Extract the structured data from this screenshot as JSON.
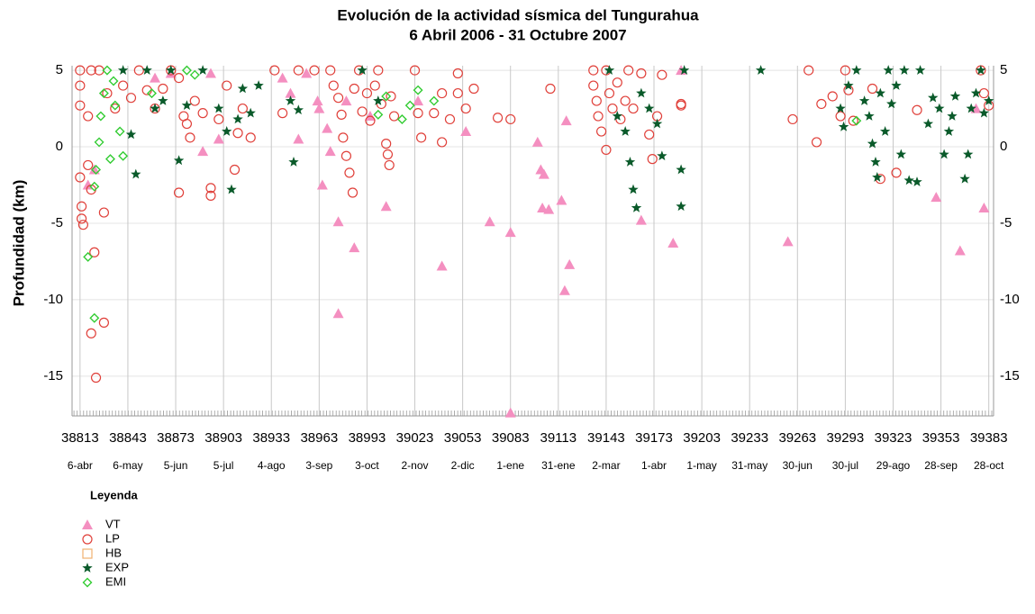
{
  "chart_data": {
    "type": "scatter",
    "title": "Evolución de la actividad sísmica del Tungurahua",
    "subtitle": "6 Abril 2006 - 31 Octubre 2007",
    "y_label": "Profundidad (km)",
    "legend_title": "Leyenda",
    "legend": "bottom-left",
    "grid": true,
    "xlim": [
      38808,
      39386
    ],
    "ylim": [
      -17.6,
      5.3
    ],
    "xticks": [
      38813,
      38843,
      38873,
      38903,
      38933,
      38963,
      38993,
      39023,
      39053,
      39083,
      39113,
      39143,
      39173,
      39203,
      39233,
      39263,
      39293,
      39323,
      39353,
      39383
    ],
    "xtick_dates": [
      "6-abr",
      "6-may",
      "5-jun",
      "5-jul",
      "4-ago",
      "3-sep",
      "3-oct",
      "2-nov",
      "2-dic",
      "1-ene",
      "31-ene",
      "2-mar",
      "1-abr",
      "1-may",
      "31-may",
      "30-jun",
      "30-jul",
      "29-ago",
      "28-sep",
      "28-oct"
    ],
    "yticks": [
      5,
      0,
      -5,
      -10,
      -15
    ],
    "series": [
      {
        "name": "VT",
        "marker": "triangle",
        "color": "#f48fc0",
        "x": [
          38818,
          38822,
          38860,
          38870,
          38890,
          38895,
          38900,
          38940,
          38945,
          38950,
          38955,
          38962,
          38963,
          38965,
          38968,
          38970,
          38975,
          38975,
          38980,
          38985,
          38995,
          39005,
          39025,
          39040,
          39055,
          39070,
          39083,
          39083,
          39100,
          39102,
          39104,
          39103,
          39107,
          39115,
          39117,
          39120,
          39118,
          39165,
          39185,
          39190,
          39257,
          39350,
          39365,
          39380,
          39375
        ],
        "values": [
          -2.5,
          -1.5,
          4.5,
          4.8,
          -0.3,
          4.8,
          0.5,
          4.5,
          3.5,
          0.5,
          4.8,
          3.0,
          2.5,
          -2.5,
          1.2,
          -0.3,
          -4.9,
          -10.9,
          3.0,
          -6.6,
          2.0,
          -3.9,
          3.0,
          -7.8,
          1.0,
          -4.9,
          -5.6,
          -17.4,
          0.3,
          -1.5,
          -1.8,
          -4.0,
          -4.1,
          -3.5,
          -9.4,
          -7.7,
          1.7,
          -4.8,
          -6.3,
          5.0,
          -6.2,
          -3.3,
          -6.8,
          -4.0,
          2.5
        ]
      },
      {
        "name": "LP",
        "marker": "circle",
        "color": "#e0403a",
        "x": [
          38813,
          38813,
          38813,
          38813,
          38814,
          38814,
          38815,
          38818,
          38820,
          38822,
          38820,
          38823,
          38828,
          38828,
          38818,
          38820,
          38825,
          38830,
          38835,
          38840,
          38845,
          38850,
          38855,
          38860,
          38865,
          38870,
          38875,
          38878,
          38880,
          38875,
          38882,
          38885,
          38890,
          38895,
          38895,
          38900,
          38905,
          38910,
          38912,
          38915,
          38920,
          38935,
          38940,
          38950,
          38960,
          38970,
          38972,
          38975,
          38977,
          38978,
          38980,
          38982,
          38984,
          38985,
          38988,
          38990,
          38993,
          38995,
          38998,
          39000,
          39002,
          39005,
          39006,
          39007,
          39008,
          39010,
          39023,
          39025,
          39027,
          39035,
          39040,
          39040,
          39045,
          39050,
          39050,
          39055,
          39060,
          39075,
          39083,
          39108,
          39135,
          39135,
          39137,
          39138,
          39140,
          39143,
          39145,
          39147,
          39150,
          39152,
          39155,
          39157,
          39160,
          39143,
          39165,
          39170,
          39172,
          39175,
          39178,
          39190,
          39190,
          39260,
          39270,
          39275,
          39278,
          39285,
          39290,
          39293,
          39295,
          39298,
          39310,
          39315,
          39325,
          39338,
          39378,
          39380,
          39383
        ],
        "values": [
          5,
          4,
          2.7,
          -2,
          -3.9,
          -4.7,
          -5.1,
          -1.2,
          -2.8,
          -6.9,
          -12.2,
          -15.1,
          -11.5,
          -4.3,
          2.0,
          5,
          5,
          3.5,
          2.5,
          4,
          3.2,
          5,
          3.7,
          2.5,
          3.8,
          5,
          4.5,
          2.0,
          1.5,
          -3.0,
          0.6,
          3.0,
          2.2,
          -2.7,
          -3.2,
          1.8,
          4.0,
          -1.5,
          0.9,
          2.5,
          0.6,
          5,
          2.2,
          5,
          5,
          5,
          4.0,
          3.2,
          2.1,
          0.6,
          -0.6,
          -1.7,
          -3.0,
          3.8,
          5,
          2.3,
          3.5,
          1.7,
          4.0,
          5,
          2.8,
          0.2,
          -0.5,
          -1.2,
          3.3,
          2.0,
          5,
          2.2,
          0.6,
          2.2,
          3.5,
          0.3,
          1.8,
          4.8,
          3.5,
          2.5,
          3.8,
          1.9,
          1.8,
          3.8,
          5,
          4.0,
          3.0,
          2.0,
          1.0,
          5,
          3.5,
          2.5,
          4.2,
          1.8,
          3.0,
          5,
          2.5,
          -0.2,
          4.8,
          0.8,
          -0.8,
          2.0,
          4.7,
          2.8,
          2.7,
          1.8,
          5,
          0.3,
          2.8,
          3.3,
          2.0,
          5,
          3.7,
          1.7,
          3.8,
          -2.1,
          -1.7,
          2.4,
          5,
          3.5,
          2.7
        ]
      },
      {
        "name": "HB",
        "marker": "square",
        "color": "#f0b070",
        "x": [],
        "values": []
      },
      {
        "name": "EXP",
        "marker": "star",
        "color": "#0a5a2a",
        "x": [
          38840,
          38845,
          38848,
          38855,
          38860,
          38865,
          38870,
          38875,
          38880,
          38890,
          38900,
          38905,
          38908,
          38912,
          38915,
          38920,
          38925,
          38945,
          38947,
          38950,
          38990,
          39000,
          39145,
          39150,
          39155,
          39158,
          39160,
          39162,
          39165,
          39170,
          39175,
          39178,
          39190,
          39190,
          39192,
          39240,
          39290,
          39292,
          39295,
          39300,
          39305,
          39308,
          39310,
          39312,
          39313,
          39315,
          39318,
          39320,
          39322,
          39325,
          39328,
          39330,
          39333,
          39338,
          39340,
          39345,
          39348,
          39352,
          39355,
          39358,
          39360,
          39362,
          39368,
          39370,
          39372,
          39375,
          39378,
          39380,
          39383
        ],
        "values": [
          5,
          0.8,
          -1.8,
          5,
          2.5,
          3.0,
          5,
          -0.9,
          2.7,
          5,
          2.5,
          1.0,
          -2.8,
          1.8,
          3.8,
          2.2,
          4.0,
          3.0,
          -1.0,
          2.4,
          5,
          3.0,
          5,
          2.0,
          1.0,
          -1.0,
          -2.8,
          -4.0,
          3.5,
          2.5,
          1.5,
          -0.6,
          -1.5,
          -3.9,
          5,
          5,
          2.5,
          1.3,
          4.0,
          5,
          3.0,
          2.0,
          0.2,
          -1.0,
          -2.0,
          3.5,
          1.0,
          5,
          2.8,
          4.0,
          -0.5,
          5,
          -2.2,
          -2.3,
          5,
          1.5,
          3.2,
          2.5,
          -0.5,
          1.0,
          2.0,
          3.3,
          -2.1,
          -0.5,
          2.5,
          3.5,
          5,
          2.2,
          3.0
        ]
      },
      {
        "name": "EMI",
        "marker": "diamond",
        "color": "#33cc33",
        "x": [
          38818,
          38822,
          38822,
          38823,
          38825,
          38826,
          38828,
          38830,
          38832,
          38834,
          38835,
          38838,
          38840,
          38858,
          38880,
          38885,
          39000,
          39005,
          39015,
          39020,
          39025,
          39035,
          39300
        ],
        "values": [
          -7.2,
          -11.2,
          -2.6,
          -1.5,
          0.3,
          2.0,
          3.5,
          5,
          -0.8,
          4.3,
          2.7,
          1.0,
          -0.6,
          3.5,
          5,
          4.7,
          2.1,
          3.3,
          1.8,
          2.7,
          3.7,
          3.0,
          1.7
        ]
      }
    ]
  }
}
